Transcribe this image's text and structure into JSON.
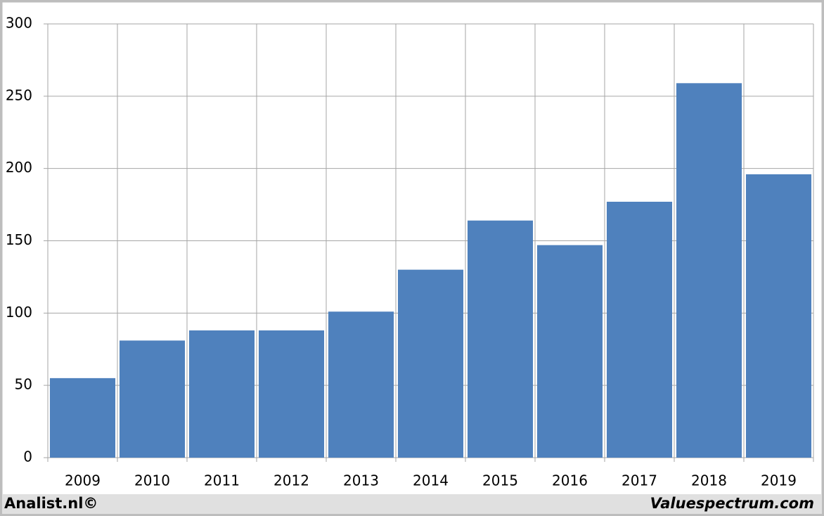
{
  "chart_data": {
    "type": "bar",
    "categories": [
      "2009",
      "2010",
      "2011",
      "2012",
      "2013",
      "2014",
      "2015",
      "2016",
      "2017",
      "2018",
      "2019"
    ],
    "values": [
      55,
      81,
      88,
      88,
      101,
      130,
      164,
      147,
      177,
      259,
      196
    ],
    "color": "#4f81bd",
    "ylim": [
      0,
      300
    ],
    "yticks": [
      0,
      50,
      100,
      150,
      200,
      250,
      300
    ],
    "grid": true,
    "footer_left": "Analist.nl©",
    "footer_right": "Valuespectrum.com"
  }
}
